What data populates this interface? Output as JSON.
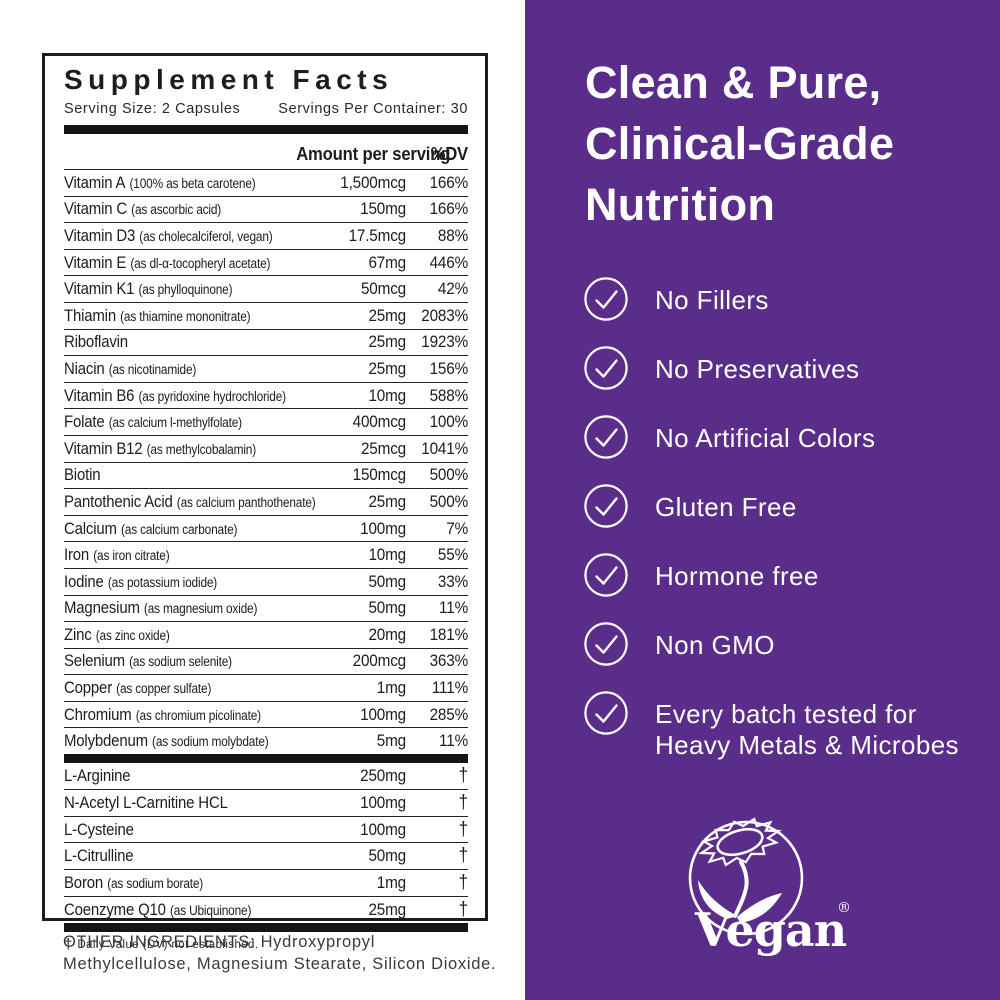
{
  "label": {
    "title": "Supplement Facts",
    "serving_size": "Serving Size: 2 Capsules",
    "servings_per_container": "Servings Per Container: 30",
    "columns": {
      "amount": "Amount per serving",
      "dv": "%DV"
    },
    "nutrients": [
      {
        "name": "Vitamin A",
        "detail": "(100% as beta carotene)",
        "amount": "1,500mcg",
        "dv": "166%"
      },
      {
        "name": "Vitamin C",
        "detail": "(as ascorbic acid)",
        "amount": "150mg",
        "dv": "166%"
      },
      {
        "name": "Vitamin D3",
        "detail": "(as cholecalciferol, vegan)",
        "amount": "17.5mcg",
        "dv": "88%"
      },
      {
        "name": "Vitamin E",
        "detail": "(as dl-α-tocopheryl acetate)",
        "amount": "67mg",
        "dv": "446%"
      },
      {
        "name": "Vitamin K1",
        "detail": "(as phylloquinone)",
        "amount": "50mcg",
        "dv": "42%"
      },
      {
        "name": "Thiamin",
        "detail": "(as thiamine mononitrate)",
        "amount": "25mg",
        "dv": "2083%"
      },
      {
        "name": "Riboflavin",
        "detail": "",
        "amount": "25mg",
        "dv": "1923%"
      },
      {
        "name": "Niacin",
        "detail": "(as nicotinamide)",
        "amount": "25mg",
        "dv": "156%"
      },
      {
        "name": "Vitamin B6",
        "detail": "(as pyridoxine hydrochloride)",
        "amount": "10mg",
        "dv": "588%"
      },
      {
        "name": "Folate",
        "detail": "(as calcium l-methylfolate)",
        "amount": "400mcg",
        "dv": "100%"
      },
      {
        "name": "Vitamin B12",
        "detail": "(as methylcobalamin)",
        "amount": "25mcg",
        "dv": "1041%"
      },
      {
        "name": "Biotin",
        "detail": "",
        "amount": "150mcg",
        "dv": "500%"
      },
      {
        "name": "Pantothenic Acid",
        "detail": "(as calcium panthothenate)",
        "amount": "25mg",
        "dv": "500%"
      },
      {
        "name": "Calcium",
        "detail": "(as calcium carbonate)",
        "amount": "100mg",
        "dv": "7%"
      },
      {
        "name": "Iron",
        "detail": "(as iron citrate)",
        "amount": "10mg",
        "dv": "55%"
      },
      {
        "name": "Iodine",
        "detail": "(as potassium iodide)",
        "amount": "50mg",
        "dv": "33%"
      },
      {
        "name": "Magnesium",
        "detail": "(as magnesium oxide)",
        "amount": "50mg",
        "dv": "11%"
      },
      {
        "name": "Zinc",
        "detail": "(as zinc oxide)",
        "amount": "20mg",
        "dv": "181%"
      },
      {
        "name": "Selenium",
        "detail": "(as sodium selenite)",
        "amount": "200mcg",
        "dv": "363%"
      },
      {
        "name": "Copper",
        "detail": "(as copper sulfate)",
        "amount": "1mg",
        "dv": "111%"
      },
      {
        "name": "Chromium",
        "detail": "(as chromium picolinate)",
        "amount": "100mg",
        "dv": "285%"
      },
      {
        "name": "Molybdenum",
        "detail": "(as sodium molybdate)",
        "amount": "5mg",
        "dv": "11%"
      }
    ],
    "extras": [
      {
        "name": "L-Arginine",
        "detail": "",
        "amount": "250mg",
        "dv": "†"
      },
      {
        "name": "N-Acetyl L-Carnitine HCL",
        "detail": "",
        "amount": "100mg",
        "dv": "†"
      },
      {
        "name": "L-Cysteine",
        "detail": "",
        "amount": "100mg",
        "dv": "†"
      },
      {
        "name": "L-Citrulline",
        "detail": "",
        "amount": "50mg",
        "dv": "†"
      },
      {
        "name": "Boron",
        "detail": "(as sodium borate)",
        "amount": "1mg",
        "dv": "†"
      },
      {
        "name": "Coenzyme Q10",
        "detail": "(as Ubiquinone)",
        "amount": "25mg",
        "dv": "†"
      }
    ],
    "footnote_symbol": "†",
    "footnote": "Daily Value (DV) not established.",
    "other_ingredients": "OTHER INGREDIENTS: Hydroxypropyl Methylcellulose, Magnesium Stearate, Silicon Dioxide."
  },
  "panel": {
    "heading_lines": [
      "Clean & Pure,",
      "Clinical-Grade",
      "Nutrition"
    ],
    "features": [
      {
        "lines": [
          "No Fillers"
        ]
      },
      {
        "lines": [
          "No Preservatives"
        ]
      },
      {
        "lines": [
          "No Artificial Colors"
        ]
      },
      {
        "lines": [
          "Gluten Free"
        ]
      },
      {
        "lines": [
          "Hormone free"
        ]
      },
      {
        "lines": [
          "Non GMO"
        ]
      },
      {
        "lines": [
          "Every batch tested for",
          "Heavy Metals & Microbes"
        ]
      }
    ],
    "vegan_logo": {
      "word": "Vegan",
      "registered_mark": "®"
    },
    "colors": {
      "purple": "#5b2d8a",
      "text_dark": "#1d1d1b",
      "white": "#ffffff"
    }
  }
}
